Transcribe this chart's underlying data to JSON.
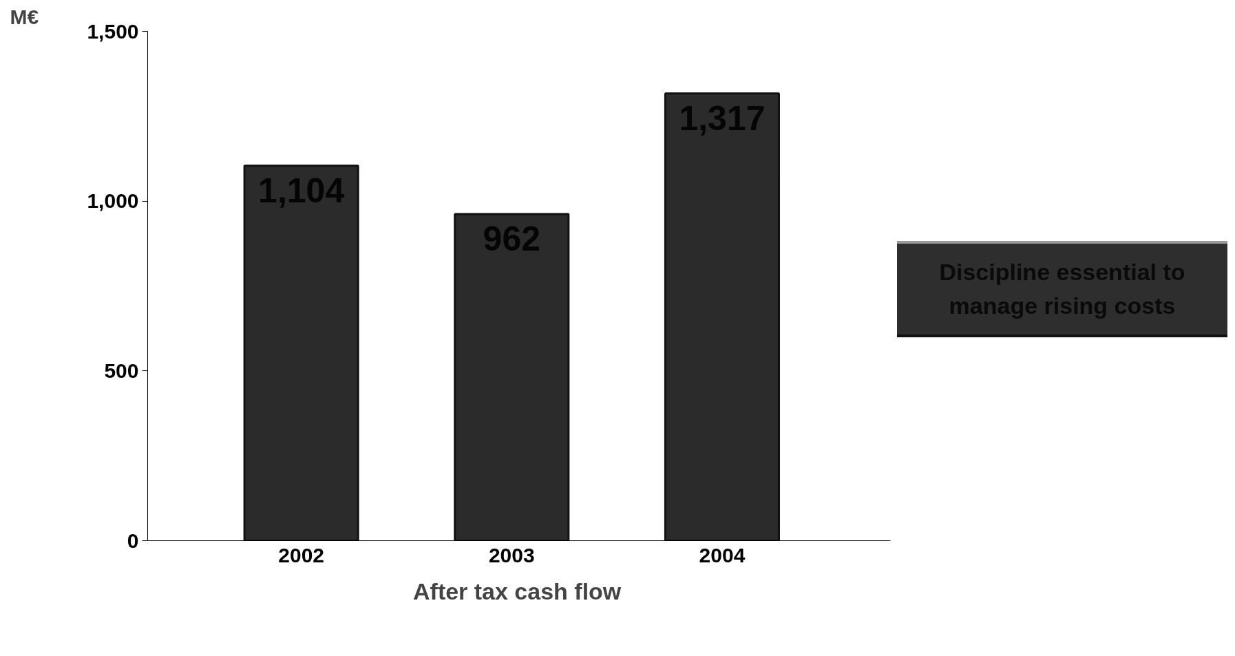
{
  "chart_data": {
    "type": "bar",
    "ylabel": "M€",
    "categories": [
      "2002",
      "2003",
      "2004"
    ],
    "series": [
      {
        "name": "After tax cash flow",
        "color": "#2b2b2b",
        "values": [
          1104,
          962,
          1317
        ]
      }
    ],
    "ylim": [
      0,
      1500
    ],
    "yticks": [
      0,
      {
        "value": 500,
        "label": "500"
      },
      {
        "value": 1000,
        "label": "1,000"
      },
      {
        "value": 1500,
        "label": "1,500"
      }
    ],
    "value_labels": [
      "1,104",
      "962",
      "1,317"
    ],
    "grid": false,
    "legend": "bottom",
    "annotations": [
      "Discipline essential to manage rising costs"
    ]
  }
}
